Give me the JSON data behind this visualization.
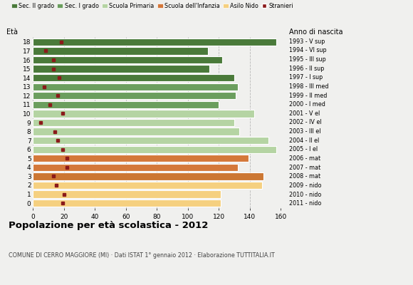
{
  "ages": [
    18,
    17,
    16,
    15,
    14,
    13,
    12,
    11,
    10,
    9,
    8,
    7,
    6,
    5,
    4,
    3,
    2,
    1,
    0
  ],
  "years": [
    "1993 - V sup",
    "1994 - VI sup",
    "1995 - III sup",
    "1996 - II sup",
    "1997 - I sup",
    "1998 - III med",
    "1999 - II med",
    "2000 - I med",
    "2001 - V el",
    "2002 - IV el",
    "2003 - III el",
    "2004 - II el",
    "2005 - I el",
    "2006 - mat",
    "2007 - mat",
    "2008 - mat",
    "2009 - nido",
    "2010 - nido",
    "2011 - nido"
  ],
  "total_values": [
    157,
    113,
    122,
    114,
    130,
    132,
    131,
    120,
    143,
    130,
    133,
    152,
    157,
    139,
    132,
    149,
    148,
    121,
    121
  ],
  "stranieri_values": [
    18,
    8,
    13,
    13,
    17,
    7,
    16,
    11,
    19,
    5,
    14,
    16,
    19,
    22,
    22,
    13,
    15,
    20,
    19
  ],
  "colors_by_age": {
    "18": "#4a7a3a",
    "17": "#4a7a3a",
    "16": "#4a7a3a",
    "15": "#4a7a3a",
    "14": "#4a7a3a",
    "13": "#6b9e5e",
    "12": "#6b9e5e",
    "11": "#6b9e5e",
    "10": "#b5d4a3",
    "9": "#b5d4a3",
    "8": "#b5d4a3",
    "7": "#b5d4a3",
    "6": "#b5d4a3",
    "5": "#d4783a",
    "4": "#d4783a",
    "3": "#cc7733",
    "2": "#f5d080",
    "1": "#f5d080",
    "0": "#f5d080"
  },
  "stranieri_color": "#8b1a1a",
  "title": "Popolazione per età scolastica - 2012",
  "subtitle": "COMUNE DI CERRO MAGGIORE (MI) · Dati ISTAT 1° gennaio 2012 · Elaborazione TUTTITALIA.IT",
  "ylabel_left": "Età",
  "ylabel_right": "Anno di nascita",
  "xlim": [
    0,
    160
  ],
  "xticks": [
    0,
    20,
    40,
    60,
    80,
    100,
    120,
    140,
    160
  ],
  "bg_color": "#f0f0ee",
  "legend_labels": [
    "Sec. II grado",
    "Sec. I grado",
    "Scuola Primaria",
    "Scuola dell'Infanzia",
    "Asilo Nido",
    "Stranieri"
  ],
  "legend_colors": [
    "#4a7a3a",
    "#6b9e5e",
    "#b5d4a3",
    "#d4783a",
    "#f5d080",
    "#8b1a1a"
  ]
}
